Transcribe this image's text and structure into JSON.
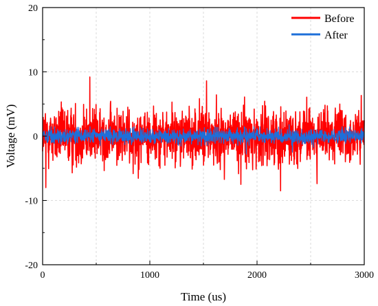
{
  "chart_data": {
    "type": "line",
    "title": "",
    "xlabel": "Time (us)",
    "ylabel": "Voltage (mV)",
    "xlim": [
      0,
      3000
    ],
    "ylim": [
      -20,
      20
    ],
    "xticks": [
      "0",
      "1000",
      "2000",
      "3000"
    ],
    "yticks": [
      "20",
      "10",
      "0",
      "-10",
      "-20"
    ],
    "grid": true,
    "legend_position": "top-right",
    "series": [
      {
        "name": "Before",
        "color": "#ff0000",
        "description_stats": {
          "typical_amplitude_mV": 5,
          "max_mV": 9.2,
          "min_mV": -8.5
        },
        "peaks": [
          [
            440,
            9.2
          ],
          [
            1530,
            8.6
          ],
          [
            2220,
            -8.5
          ],
          [
            1850,
            -7.5
          ],
          [
            30,
            -8.0
          ]
        ]
      },
      {
        "name": "After",
        "color": "#1e6fd9",
        "description_stats": {
          "typical_amplitude_mV": 1.2,
          "max_mV": 1.8,
          "min_mV": -2.8
        },
        "peaks": [
          [
            1900,
            -2.8
          ],
          [
            2300,
            1.8
          ],
          [
            2330,
            -2.5
          ]
        ]
      }
    ]
  }
}
